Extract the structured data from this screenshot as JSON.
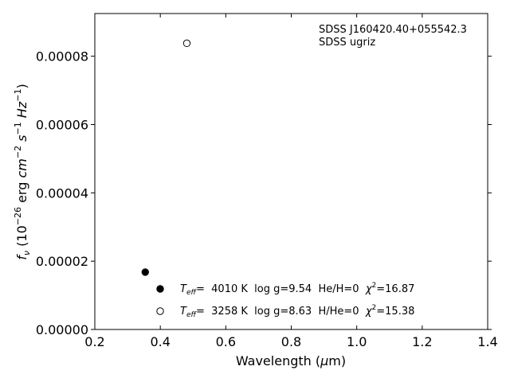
{
  "chart_data": {
    "type": "scatter",
    "xlabel_prefix": "Wavelength (",
    "xlabel_mu": "μ",
    "xlabel_suffix": "m)",
    "ylabel_f": "f",
    "ylabel_nu": "ν",
    "ylabel_rest": " (10",
    "ylabel_exp1": "−26",
    "ylabel_erg": " erg ",
    "ylabel_cm": "cm",
    "ylabel_exp2": "−2",
    "ylabel_s": " s",
    "ylabel_exp3": "−1",
    "ylabel_hz": " Hz",
    "ylabel_exp4": "−1",
    "ylabel_close": ")",
    "xlim": [
      0.2,
      1.4
    ],
    "ylim": [
      0.0,
      9.25e-05
    ],
    "x_ticks": [
      0.2,
      0.4,
      0.6,
      0.8,
      1.0,
      1.2,
      1.4
    ],
    "x_tick_labels": [
      "0.2",
      "0.4",
      "0.6",
      "0.8",
      "1.0",
      "1.2",
      "1.4"
    ],
    "y_ticks": [
      0.0,
      2e-05,
      4e-05,
      6e-05,
      8e-05
    ],
    "y_tick_labels": [
      "0.00000",
      "0.00002",
      "0.00004",
      "0.00006",
      "0.00008"
    ],
    "annotation_lines": [
      "SDSS J160420.40+055542.3",
      "SDSS ugriz"
    ],
    "grid": false,
    "legend_position": "lower-center",
    "series": [
      {
        "marker": "filled-circle",
        "x": [
          0.354
        ],
        "y": [
          1.68e-05
        ],
        "legend": {
          "t": "T",
          "eff": "eff",
          "rest": "=  4010 K  log g=9.54  He/H=0  ",
          "chi": "χ",
          "two": "2",
          "chi_val": "=16.87"
        }
      },
      {
        "marker": "open-circle",
        "x": [
          0.481
        ],
        "y": [
          8.38e-05
        ],
        "legend": {
          "t": "T",
          "eff": "eff",
          "rest": "=  3258 K  log g=8.63  H/He=0  ",
          "chi": "χ",
          "two": "2",
          "chi_val": "=15.38"
        }
      }
    ]
  }
}
